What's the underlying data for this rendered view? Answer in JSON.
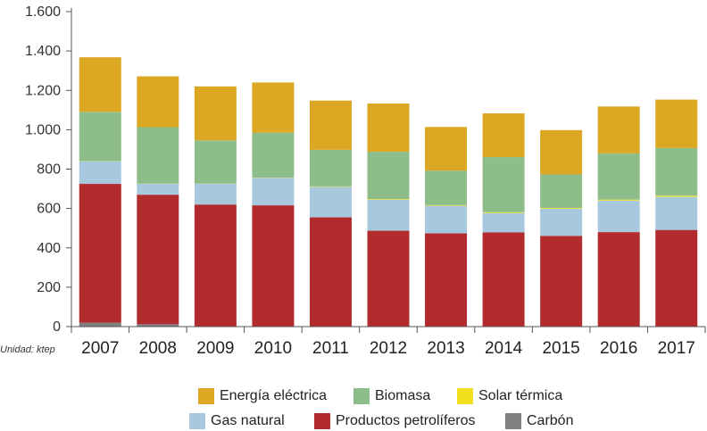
{
  "chart_data": {
    "type": "stacked-bar",
    "title": "",
    "xlabel": "",
    "ylabel": "",
    "unit_note": "Unidad: ktep",
    "ylim": [
      0,
      1600
    ],
    "y_ticks": [
      0,
      200,
      400,
      600,
      800,
      1000,
      1200,
      1400,
      1600
    ],
    "y_tick_labels": [
      "0",
      "200",
      "400",
      "600",
      "800",
      "1.000",
      "1.200",
      "1.400",
      "1.600"
    ],
    "grid": false,
    "categories": [
      "2007",
      "2008",
      "2009",
      "2010",
      "2011",
      "2012",
      "2013",
      "2014",
      "2015",
      "2016",
      "2017"
    ],
    "series": [
      {
        "name": "Carbón",
        "color": "#808080",
        "values": [
          20,
          12,
          2,
          2,
          2,
          2,
          2,
          2,
          2,
          2,
          2
        ]
      },
      {
        "name": "Productos petrolíferos",
        "color": "#B22B2D",
        "values": [
          705,
          658,
          618,
          614,
          553,
          485,
          472,
          477,
          459,
          478,
          489
        ]
      },
      {
        "name": "Gas natural",
        "color": "#A8C8DE",
        "values": [
          115,
          55,
          105,
          140,
          155,
          158,
          140,
          98,
          138,
          160,
          168
        ]
      },
      {
        "name": "Solar térmica",
        "color": "#F0E020",
        "values": [
          1,
          1,
          1,
          1,
          2,
          3,
          3,
          4,
          4,
          5,
          6
        ]
      },
      {
        "name": "Biomasa",
        "color": "#8DBE8A",
        "values": [
          250,
          287,
          220,
          228,
          186,
          240,
          175,
          280,
          170,
          235,
          242
        ]
      },
      {
        "name": "Energía eléctrica",
        "color": "#DCA823",
        "values": [
          277,
          258,
          274,
          255,
          250,
          245,
          222,
          222,
          225,
          238,
          246
        ]
      }
    ]
  },
  "legend": {
    "row1": [
      "Energía eléctrica",
      "Biomasa",
      "Solar térmica"
    ],
    "row2": [
      "Gas natural",
      "Productos petrolíferos",
      "Carbón"
    ]
  }
}
